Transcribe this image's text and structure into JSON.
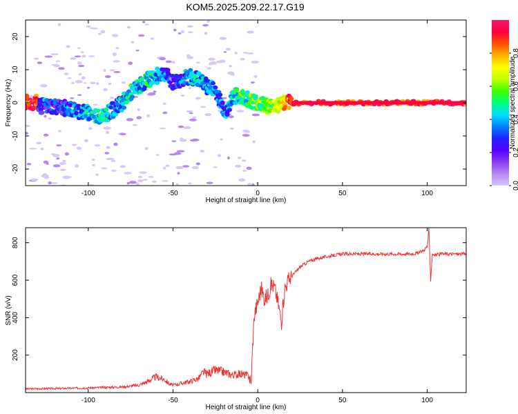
{
  "title": "KOM5.2025.209.22.17.G19",
  "chart_data": [
    {
      "type": "heatmap",
      "xlabel": "Height of straight line (km)",
      "ylabel": "Frequency (Hz)",
      "xlim": [
        -137,
        123
      ],
      "ylim": [
        -25,
        25
      ],
      "xticks": [
        -100,
        -50,
        0,
        50,
        100
      ],
      "yticks": [
        -20,
        -10,
        0,
        10,
        20
      ],
      "colorbar": {
        "label": "Normalized spectral amplitude",
        "range": [
          0,
          1
        ],
        "ticks": [
          0,
          0.2,
          0.4,
          0.6,
          0.8
        ],
        "colors": [
          "#d8c8f8",
          "#b488f0",
          "#8a3cf0",
          "#5500ff",
          "#2222ff",
          "#0080ff",
          "#00e0ff",
          "#00ff80",
          "#40ff00",
          "#c0ff00",
          "#ffff00",
          "#ffb000",
          "#ff5000",
          "#ff0040",
          "#f0186c"
        ]
      },
      "ridge": {
        "x": [
          -130,
          -120,
          -110,
          -100,
          -95,
          -90,
          -85,
          -80,
          -75,
          -70,
          -65,
          -60,
          -55,
          -50,
          -45,
          -40,
          -35,
          -30,
          -25,
          -20,
          -18,
          -15,
          -10,
          -5,
          0,
          5,
          10,
          15,
          20,
          30,
          40,
          50,
          60,
          70,
          80,
          90,
          100,
          110,
          123
        ],
        "y": [
          -1,
          -1,
          -2,
          -3,
          -4,
          -3.5,
          -2,
          0,
          3,
          5,
          7,
          8,
          9,
          6,
          7,
          8,
          7,
          5,
          4,
          -2,
          -3,
          2,
          2,
          1,
          0,
          -1,
          -1,
          0,
          0,
          0,
          0,
          0,
          0,
          0,
          0,
          0,
          0,
          0,
          0
        ],
        "amplitude": [
          0.3,
          0.25,
          0.3,
          0.4,
          0.45,
          0.45,
          0.35,
          0.4,
          0.45,
          0.4,
          0.45,
          0.4,
          0.3,
          0.2,
          0.3,
          0.4,
          0.4,
          0.35,
          0.35,
          0.3,
          0.35,
          0.4,
          0.5,
          0.5,
          0.55,
          0.6,
          0.6,
          0.7,
          0.88,
          0.9,
          0.9,
          0.9,
          0.9,
          0.9,
          0.9,
          0.92,
          0.85,
          0.92,
          0.92
        ]
      }
    },
    {
      "type": "line",
      "xlabel": "Height of straight line (km)",
      "ylabel": "SNR (v/v)",
      "xlim": [
        -137,
        123
      ],
      "ylim": [
        0,
        880
      ],
      "xticks": [
        -100,
        -50,
        0,
        50,
        100
      ],
      "yticks": [
        200,
        400,
        600,
        800
      ],
      "series": [
        {
          "color": "#ee3333",
          "x": [
            -137,
            -120,
            -100,
            -90,
            -80,
            -70,
            -65,
            -60,
            -55,
            -52,
            -50,
            -45,
            -40,
            -35,
            -32,
            -30,
            -25,
            -20,
            -15,
            -10,
            -5,
            -4,
            -3,
            -2,
            0,
            2,
            4,
            6,
            8,
            10,
            12,
            14,
            16,
            18,
            20,
            25,
            30,
            35,
            40,
            50,
            60,
            70,
            80,
            90,
            95,
            98,
            100,
            101,
            102,
            103,
            105,
            110,
            115,
            123
          ],
          "y": [
            20,
            22,
            25,
            28,
            30,
            40,
            60,
            85,
            70,
            45,
            40,
            50,
            60,
            75,
            110,
            100,
            120,
            110,
            95,
            100,
            90,
            40,
            250,
            420,
            480,
            560,
            500,
            520,
            580,
            560,
            480,
            380,
            560,
            600,
            620,
            670,
            700,
            715,
            725,
            740,
            740,
            740,
            740,
            740,
            745,
            760,
            780,
            870,
            600,
            740,
            735,
            740,
            740,
            740
          ]
        }
      ]
    }
  ]
}
